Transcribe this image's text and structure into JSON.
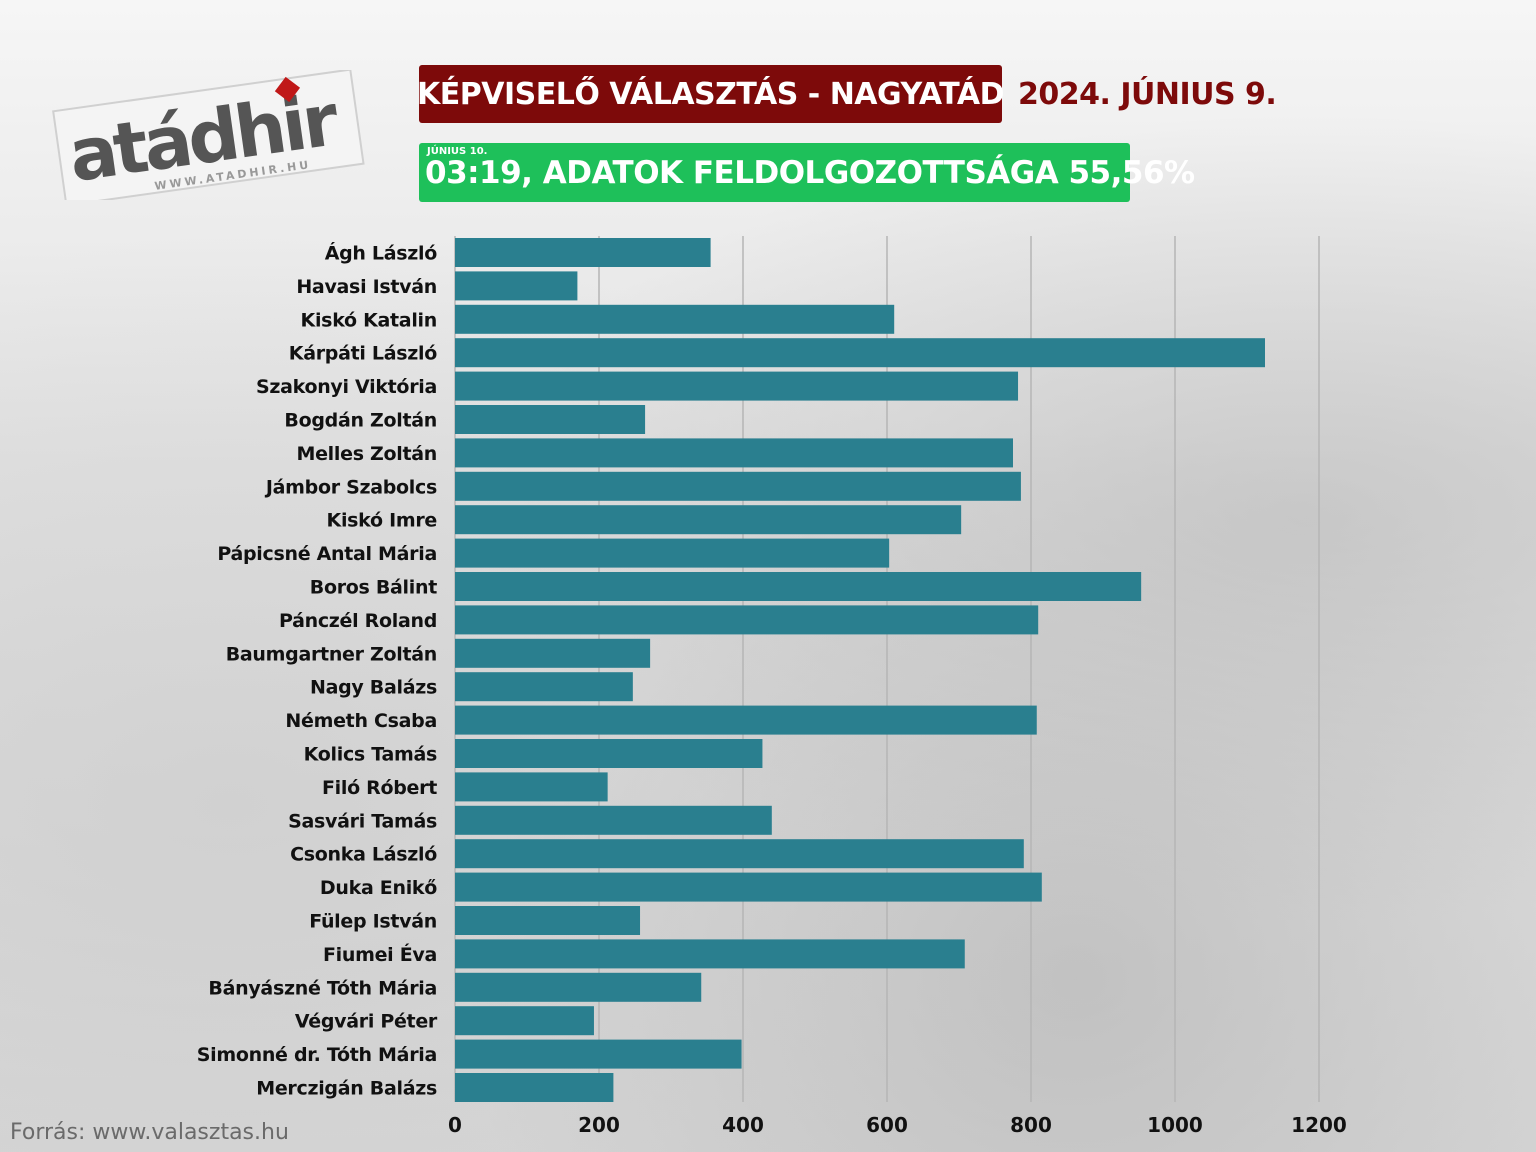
{
  "logo": {
    "text": "atádhir",
    "url": "WWW.ATADHIR.HU"
  },
  "header": {
    "title": "KÉPVISELŐ VÁLASZTÁS - NAGYATÁD",
    "date": "2024. JÚNIUS 9."
  },
  "status": {
    "small_date": "JÚNIUS 10.",
    "main": "03:19, ADATOK FELDOLGOZOTTSÁGA 55,56%"
  },
  "source": "Forrás: www.valasztas.hu",
  "colors": {
    "bar": "#2a7f8f",
    "title_bg": "#7d0a0a",
    "status_bg": "#1ec05a",
    "grid": "#b5b5b5"
  },
  "chart_data": {
    "type": "bar",
    "orientation": "horizontal",
    "categories": [
      "Ágh László",
      "Havasi István",
      "Kiskó Katalin",
      "Kárpáti László",
      "Szakonyi Viktória",
      "Bogdán Zoltán",
      "Melles Zoltán",
      "Jámbor Szabolcs",
      "Kiskó Imre",
      "Pápicsné Antal Mária",
      "Boros Bálint",
      "Pánczél Roland",
      "Baumgartner Zoltán",
      "Nagy Balázs",
      "Németh Csaba",
      "Kolics Tamás",
      "Filó Róbert",
      "Sasvári Tamás",
      "Csonka László",
      "Duka Enikő",
      "Fülep István",
      "Fiumei Éva",
      "Bányászné Tóth Mária",
      "Végvári Péter",
      "Simonné dr. Tóth Mária",
      "Merczigán Balázs"
    ],
    "values": [
      355,
      170,
      610,
      1125,
      782,
      264,
      775,
      786,
      703,
      603,
      953,
      810,
      271,
      247,
      808,
      427,
      212,
      440,
      790,
      815,
      257,
      708,
      342,
      193,
      398,
      220
    ],
    "xlim": [
      0,
      1200
    ],
    "xticks": [
      "0",
      "200",
      "400",
      "600",
      "800",
      "1000",
      "1200"
    ],
    "grid": "vertical",
    "title": "",
    "xlabel": "",
    "ylabel": ""
  }
}
